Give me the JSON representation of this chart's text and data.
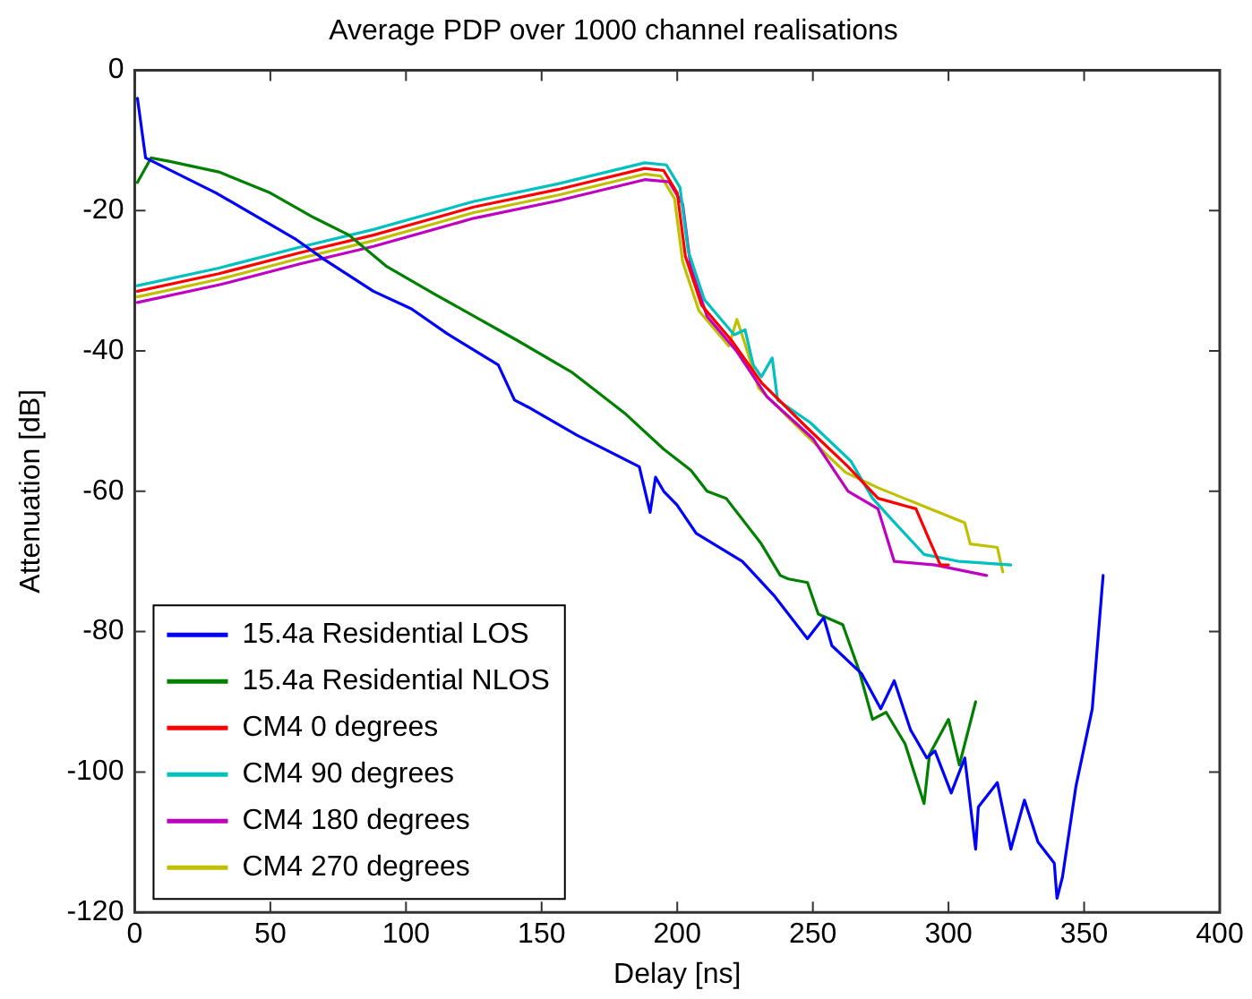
{
  "chart_data": {
    "type": "line",
    "title": "Average PDP over 1000 channel realisations",
    "xlabel": "Delay [ns]",
    "ylabel": "Attenuation [dB]",
    "xlim": [
      0,
      400
    ],
    "xticks": [
      0,
      50,
      100,
      150,
      200,
      250,
      300,
      350,
      400
    ],
    "ylim": [
      -120,
      0
    ],
    "yticks": [
      -120,
      -100,
      -80,
      -60,
      -40,
      -20,
      0
    ],
    "grid": false,
    "legend": "bottom left",
    "marker": "none",
    "line_style": "solid",
    "series": [
      {
        "name": "15.4a Residential LOS",
        "color": "#0000ff",
        "x": [
          1,
          4,
          30,
          59,
          70,
          88,
          102,
          115,
          134,
          140,
          145,
          163,
          186,
          190,
          192,
          195,
          200,
          207,
          224,
          236,
          248,
          254,
          257,
          268,
          275,
          280,
          286,
          292,
          295,
          301,
          306,
          310,
          311,
          318,
          323,
          328,
          333,
          339,
          340,
          342,
          347,
          353,
          357
        ],
        "values": [
          -4,
          -12.5,
          -17.5,
          -24,
          -27,
          -31.5,
          -34,
          -37.5,
          -42,
          -47,
          -48,
          -52,
          -56.5,
          -63,
          -58,
          -60,
          -62,
          -66,
          -70,
          -75,
          -81,
          -78,
          -82,
          -86,
          -91,
          -87,
          -94,
          -98,
          -97,
          -103,
          -98,
          -111,
          -105,
          -101.5,
          -111,
          -104,
          -110,
          -113,
          -118,
          -115,
          -102,
          -91,
          -72
        ]
      },
      {
        "name": "15.4a Residential NLOS",
        "color": "#008000",
        "x": [
          1,
          6,
          13,
          31,
          50,
          66,
          79,
          93,
          111,
          141,
          161,
          181,
          195,
          205,
          211,
          218,
          231,
          238,
          241,
          248,
          252,
          261,
          267,
          272,
          277,
          284,
          291,
          293,
          300,
          304,
          310
        ],
        "values": [
          -16,
          -12.5,
          -13,
          -14.5,
          -17.5,
          -21,
          -23.5,
          -28,
          -32,
          -38.5,
          -43,
          -49,
          -54,
          -57,
          -60,
          -61,
          -67.5,
          -72,
          -72.5,
          -73,
          -77.5,
          -79,
          -85.5,
          -92.5,
          -91.5,
          -96,
          -104.5,
          -97.5,
          -92.5,
          -99,
          -90
        ]
      },
      {
        "name": "CM4 0 degrees",
        "color": "#ff0000",
        "x": [
          1,
          31,
          61,
          88,
          125,
          156,
          188,
          195,
          200,
          203,
          209,
          220,
          231,
          248,
          263,
          274,
          288,
          293,
          297,
          300
        ],
        "values": [
          -31.5,
          -29,
          -26,
          -23.5,
          -19.5,
          -17,
          -14,
          -14.3,
          -17.5,
          -26.5,
          -33.5,
          -38.5,
          -44.5,
          -51,
          -56.5,
          -61,
          -62.5,
          -67,
          -70.5,
          -70.5
        ]
      },
      {
        "name": "CM4 90 degrees",
        "color": "#00c0c0",
        "x": [
          1,
          31,
          61,
          88,
          125,
          156,
          188,
          196,
          201,
          204,
          210,
          221,
          225,
          228,
          231,
          235,
          237,
          249,
          264,
          272,
          279,
          291,
          304,
          323
        ],
        "values": [
          -30.7,
          -28.2,
          -25.2,
          -22.7,
          -18.7,
          -16.2,
          -13.2,
          -13.5,
          -16.7,
          -25.7,
          -32.7,
          -37.7,
          -37,
          -42,
          -43.7,
          -41,
          -47,
          -50.2,
          -55.7,
          -61,
          -64,
          -69,
          -70,
          -70.5
        ]
      },
      {
        "name": "CM4 180 degrees",
        "color": "#c000c0",
        "x": [
          1,
          31,
          61,
          88,
          125,
          156,
          188,
          197,
          202,
          205,
          211,
          222,
          233,
          250,
          263,
          274,
          280,
          295,
          314
        ],
        "values": [
          -33.1,
          -30.6,
          -27.6,
          -25.1,
          -21.1,
          -18.6,
          -15.6,
          -15.9,
          -19.1,
          -28.1,
          -35.1,
          -40.1,
          -46.5,
          -52.5,
          -60,
          -62.5,
          -70,
          -70.5,
          -72
        ]
      },
      {
        "name": "CM4 270 degrees",
        "color": "#c0c000",
        "x": [
          1,
          31,
          61,
          88,
          125,
          156,
          188,
          194,
          199,
          202,
          208,
          219,
          222,
          225,
          230,
          247,
          262,
          274,
          290,
          306,
          308,
          318,
          320
        ],
        "values": [
          -32.3,
          -29.8,
          -26.8,
          -24.3,
          -20.3,
          -17.8,
          -14.8,
          -15.1,
          -18.3,
          -27.3,
          -34.3,
          -39.3,
          -35.5,
          -39,
          -45.3,
          -51.8,
          -57.3,
          -59.5,
          -62,
          -64.5,
          -67.5,
          -68,
          -71.5
        ]
      }
    ]
  }
}
